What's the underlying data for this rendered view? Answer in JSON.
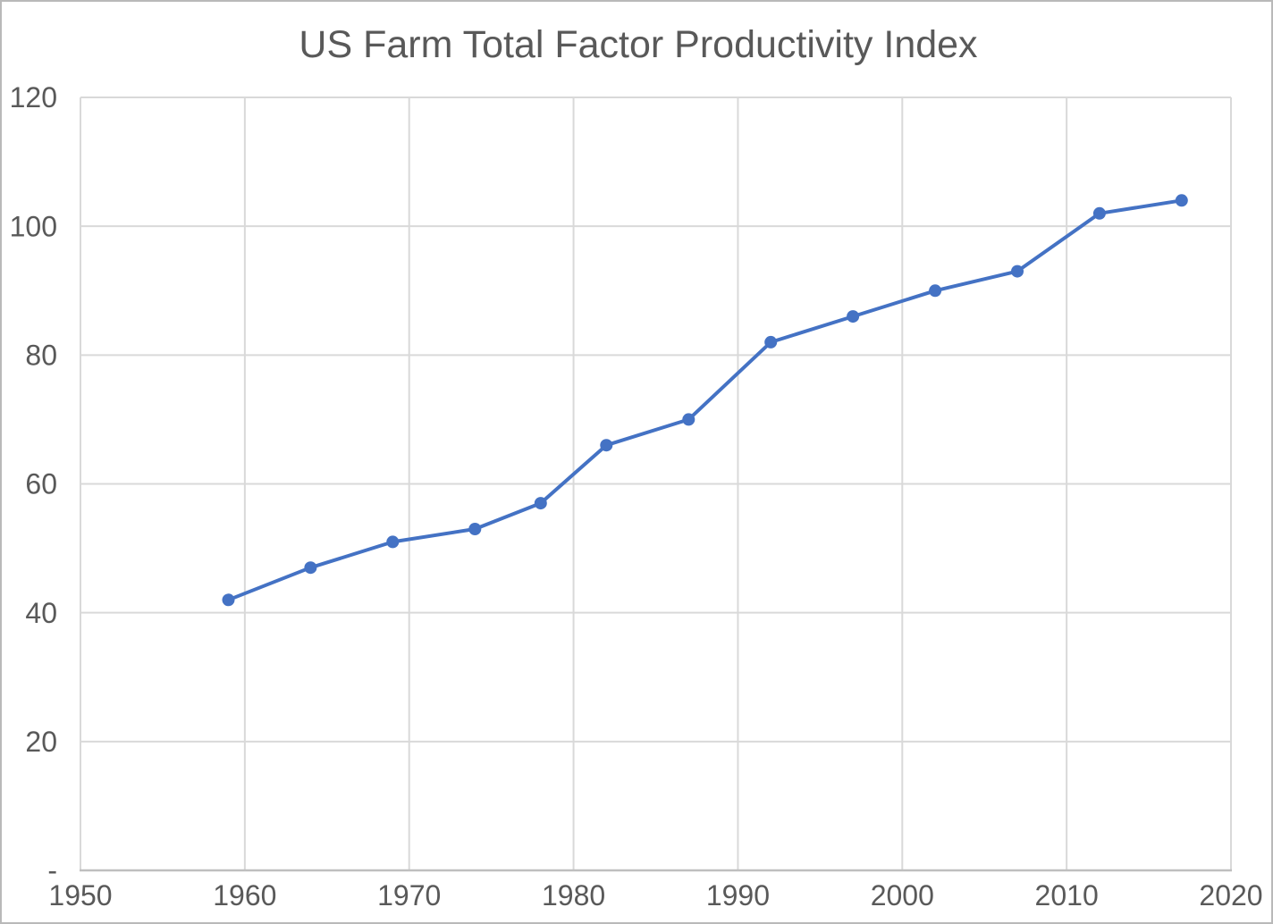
{
  "chart_data": {
    "type": "line",
    "title": "US Farm Total Factor Productivity Index",
    "x": [
      1959,
      1964,
      1969,
      1974,
      1978,
      1982,
      1987,
      1992,
      1997,
      2002,
      2007,
      2012,
      2017
    ],
    "values": [
      42,
      47,
      51,
      53,
      57,
      66,
      70,
      82,
      86,
      90,
      93,
      102,
      104
    ],
    "xlabel": "",
    "ylabel": "",
    "xlim": [
      1950,
      2020
    ],
    "ylim": [
      0,
      120
    ],
    "x_ticks": {
      "values": [
        1950,
        1960,
        1970,
        1980,
        1990,
        2000,
        2010,
        2020
      ],
      "labels": [
        "1950",
        "1960",
        "1970",
        "1980",
        "1990",
        "2000",
        "2010",
        "2020"
      ]
    },
    "y_ticks": {
      "values": [
        0,
        20,
        40,
        60,
        80,
        100,
        120
      ],
      "labels": [
        "-",
        "20",
        "40",
        "60",
        "80",
        "100",
        "120"
      ]
    },
    "grid": true,
    "legend": false,
    "marker": "circle",
    "colors": {
      "line": "#4472C4",
      "marker": "#4472C4",
      "gridline": "#D9D9D9",
      "plot_border": "#D9D9D9",
      "axis_line": "#BFBFBF",
      "tick_label": "#595959",
      "title": "#595959",
      "background": "#FFFFFF"
    }
  }
}
